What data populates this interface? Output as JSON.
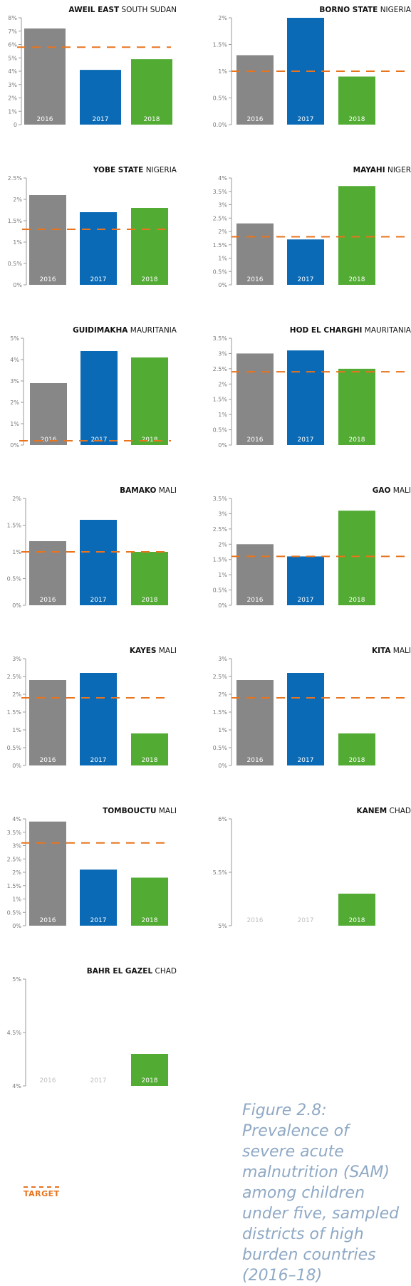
{
  "chart_data": [
    {
      "type": "bar",
      "title_bold": "AWEIL EAST",
      "title_rest": "SOUTH SUDAN",
      "categories": [
        "2016",
        "2017",
        "2018"
      ],
      "values": [
        7.2,
        4.1,
        4.9
      ],
      "target": 5.8,
      "ylim": [
        0,
        8
      ],
      "ticks": [
        0,
        1,
        2,
        3,
        4,
        5,
        6,
        7,
        8
      ],
      "tick_labels": [
        "0",
        "1%",
        "2%",
        "3%",
        "4%",
        "5%",
        "6%",
        "7%",
        "8%"
      ]
    },
    {
      "type": "bar",
      "title_bold": "BORNO STATE",
      "title_rest": "NIGERIA",
      "categories": [
        "2016",
        "2017",
        "2018"
      ],
      "values": [
        1.3,
        2.0,
        0.9
      ],
      "target": 1.0,
      "ylim": [
        0,
        2
      ],
      "ticks": [
        0,
        0.5,
        1,
        1.5,
        2
      ],
      "tick_labels": [
        "0.0%",
        "0.5%",
        "1%",
        "1.5%",
        "2%"
      ]
    },
    {
      "type": "bar",
      "title_bold": "YOBE STATE",
      "title_rest": "NIGERIA",
      "categories": [
        "2016",
        "2017",
        "2018"
      ],
      "values": [
        2.1,
        1.7,
        1.8
      ],
      "target": 1.3,
      "ylim": [
        0,
        2.5
      ],
      "ticks": [
        0,
        0.5,
        1,
        1.5,
        2,
        2.5
      ],
      "tick_labels": [
        "0%",
        "0.5%",
        "1%",
        "1.5%",
        "2%",
        "2.5%"
      ]
    },
    {
      "type": "bar",
      "title_bold": "MAYAHI",
      "title_rest": "NIGER",
      "categories": [
        "2016",
        "2017",
        "2018"
      ],
      "values": [
        2.3,
        1.7,
        3.7
      ],
      "target": 1.8,
      "ylim": [
        0,
        4
      ],
      "ticks": [
        0,
        0.5,
        1,
        1.5,
        2,
        2.5,
        3,
        3.5,
        4
      ],
      "tick_labels": [
        "0%",
        "0.5%",
        "1%",
        "1.5%",
        "2%",
        "2.5%",
        "3%",
        "3.5%",
        "4%"
      ]
    },
    {
      "type": "bar",
      "title_bold": "GUIDIMAKHA",
      "title_rest": "MAURITANIA",
      "categories": [
        "2016",
        "2017",
        "2018"
      ],
      "values": [
        2.9,
        4.4,
        4.1
      ],
      "target": 0.2,
      "ylim": [
        0,
        5
      ],
      "ticks": [
        0,
        1,
        2,
        3,
        4,
        5
      ],
      "tick_labels": [
        "0%",
        "1%",
        "2%",
        "3%",
        "4%",
        "5%"
      ]
    },
    {
      "type": "bar",
      "title_bold": "HOD EL CHARGHI",
      "title_rest": "MAURITANIA",
      "categories": [
        "2016",
        "2017",
        "2018"
      ],
      "values": [
        3.0,
        3.1,
        2.5
      ],
      "target": 2.4,
      "ylim": [
        0,
        3.5
      ],
      "ticks": [
        0,
        0.5,
        1,
        1.5,
        2,
        2.5,
        3,
        3.5
      ],
      "tick_labels": [
        "0%",
        "0.5%",
        "1%",
        "1.5%",
        "2%",
        "2.5%",
        "3%",
        "3.5%"
      ]
    },
    {
      "type": "bar",
      "title_bold": "BAMAKO",
      "title_rest": "MALI",
      "categories": [
        "2016",
        "2017",
        "2018"
      ],
      "values": [
        1.2,
        1.6,
        1.0
      ],
      "target": 1.0,
      "ylim": [
        0,
        2
      ],
      "ticks": [
        0,
        0.5,
        1,
        1.5,
        2
      ],
      "tick_labels": [
        "0%",
        "0.5%",
        "1%",
        "1.5%",
        "2%"
      ]
    },
    {
      "type": "bar",
      "title_bold": "GAO",
      "title_rest": "MALI",
      "categories": [
        "2016",
        "2017",
        "2018"
      ],
      "values": [
        2.0,
        1.6,
        3.1
      ],
      "target": 1.6,
      "ylim": [
        0,
        3.5
      ],
      "ticks": [
        0,
        0.5,
        1,
        1.5,
        2,
        2.5,
        3,
        3.5
      ],
      "tick_labels": [
        "0%",
        "0.5%",
        "1%",
        "1.5%",
        "2%",
        "2.5%",
        "3%",
        "3.5%"
      ]
    },
    {
      "type": "bar",
      "title_bold": "KAYES",
      "title_rest": "MALI",
      "categories": [
        "2016",
        "2017",
        "2018"
      ],
      "values": [
        2.4,
        2.6,
        0.9
      ],
      "target": 1.9,
      "ylim": [
        0,
        3
      ],
      "ticks": [
        0,
        0.5,
        1,
        1.5,
        2,
        2.5,
        3
      ],
      "tick_labels": [
        "0%",
        "0.5%",
        "1%",
        "1.5%",
        "2%",
        "2.5%",
        "3%"
      ]
    },
    {
      "type": "bar",
      "title_bold": "KITA",
      "title_rest": "MALI",
      "categories": [
        "2016",
        "2017",
        "2018"
      ],
      "values": [
        2.4,
        2.6,
        0.9
      ],
      "target": 1.9,
      "ylim": [
        0,
        3
      ],
      "ticks": [
        0,
        0.5,
        1,
        1.5,
        2,
        2.5,
        3
      ],
      "tick_labels": [
        "0%",
        "0.5%",
        "1%",
        "1.5%",
        "2%",
        "2.5%",
        "3%"
      ]
    },
    {
      "type": "bar",
      "title_bold": "TOMBOUCTU",
      "title_rest": "MALI",
      "categories": [
        "2016",
        "2017",
        "2018"
      ],
      "values": [
        3.9,
        2.1,
        1.8
      ],
      "target": 3.1,
      "ylim": [
        0,
        4
      ],
      "ticks": [
        0,
        0.5,
        1,
        1.5,
        2,
        2.5,
        3,
        3.5,
        4
      ],
      "tick_labels": [
        "0%",
        "0.5%",
        "1%",
        "1.5%",
        "2%",
        "2.5%",
        "3%",
        "3.5%",
        "4%"
      ]
    },
    {
      "type": "bar",
      "title_bold": "KANEM",
      "title_rest": "CHAD",
      "categories": [
        "2016",
        "2017",
        "2018"
      ],
      "values": [
        null,
        null,
        5.3
      ],
      "target": null,
      "ylim": [
        5,
        6
      ],
      "ticks": [
        5,
        5.5,
        6
      ],
      "tick_labels": [
        "5%",
        "5.5%",
        "6%"
      ]
    },
    {
      "type": "bar",
      "title_bold": "BAHR EL GAZEL",
      "title_rest": "CHAD",
      "categories": [
        "2016",
        "2017",
        "2018"
      ],
      "values": [
        null,
        null,
        4.3
      ],
      "target": null,
      "ylim": [
        4,
        5
      ],
      "ticks": [
        4,
        4.5,
        5
      ],
      "tick_labels": [
        "4%",
        "4.5%",
        "5%"
      ]
    }
  ],
  "colors": {
    "2016": "#878787",
    "2017": "#0a6ab5",
    "2018": "#52ab33",
    "target": "#e8741e",
    "axis": "#9a9a9a",
    "missing_label": "#bfbfbf"
  },
  "legend": {
    "label": "TARGET"
  },
  "caption": "Figure 2.8: Prevalence of severe acute malnutrition (SAM) among children under five, sampled districts of high burden countries (2016–18)"
}
